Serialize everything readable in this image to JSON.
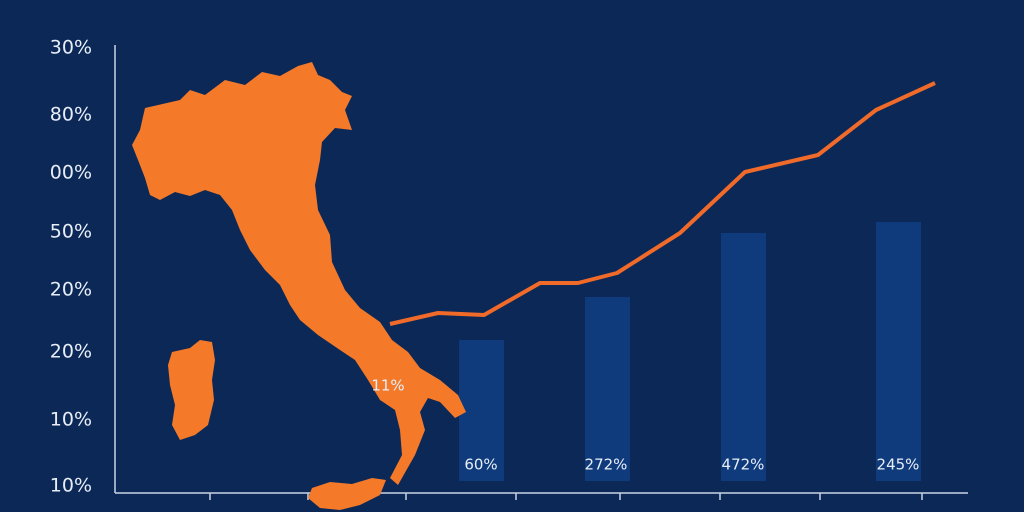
{
  "axis_labels": [
    "30%",
    "80%",
    "00%",
    "50%",
    "20%",
    "20%",
    "10%",
    "10%"
  ],
  "annotation": "11%",
  "bar_labels": [
    "60%",
    "272%",
    "472%",
    "245%"
  ]
}
